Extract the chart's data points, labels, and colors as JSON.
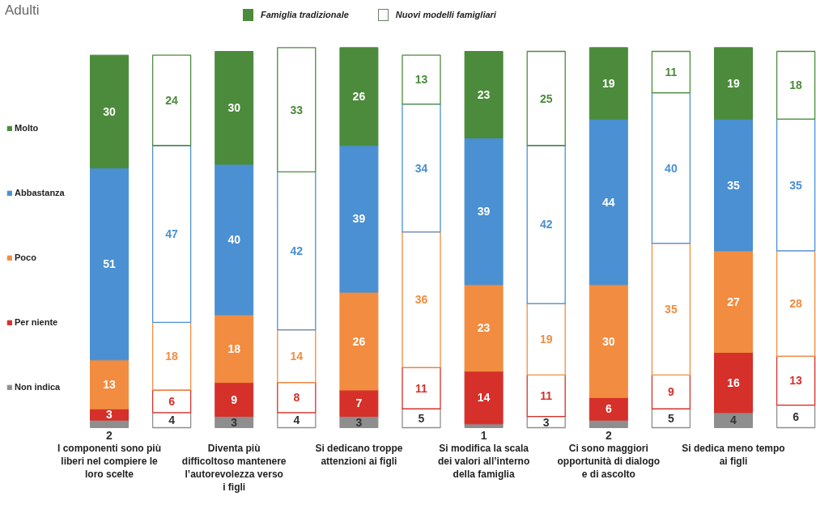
{
  "chart_data": {
    "type": "bar",
    "title": "Adulti",
    "stacked": true,
    "data_labels": true,
    "legend": "left",
    "annotations": [
      "Famiglia tradizionale",
      "Nuovi modelli famigliari"
    ],
    "categories": [
      "I componenti sono più liberi nel compiere le loro scelte",
      null,
      "Diventa più difficoltoso mantenere l’autorevolezza verso i figli",
      null,
      "Si dedicano troppe attenzioni ai figli",
      null,
      "Si modifica la scala dei valori all’interno della famiglia",
      null,
      "Ci sono maggiori opportunità di dialogo e di ascolto",
      null,
      "Si dedica meno tempo ai figli",
      null
    ],
    "series": [
      {
        "name": "Non indica",
        "color": "#8e8e8e",
        "values": [
          2,
          4,
          3,
          4,
          3,
          5,
          1,
          3,
          2,
          5,
          4,
          6
        ]
      },
      {
        "name": "Per niente",
        "color": "#d5302a",
        "values": [
          3,
          6,
          9,
          8,
          7,
          11,
          14,
          11,
          6,
          9,
          16,
          13
        ]
      },
      {
        "name": "Poco",
        "color": "#f28c40",
        "values": [
          13,
          18,
          18,
          14,
          26,
          36,
          23,
          19,
          30,
          35,
          27,
          28
        ]
      },
      {
        "name": "Abbastanza",
        "color": "#4a90d2",
        "values": [
          51,
          47,
          40,
          42,
          39,
          34,
          39,
          42,
          44,
          40,
          35,
          35
        ]
      },
      {
        "name": "Molto",
        "color": "#4b8b3b",
        "values": [
          30,
          24,
          30,
          33,
          26,
          13,
          23,
          25,
          19,
          11,
          19,
          18
        ]
      }
    ]
  }
}
